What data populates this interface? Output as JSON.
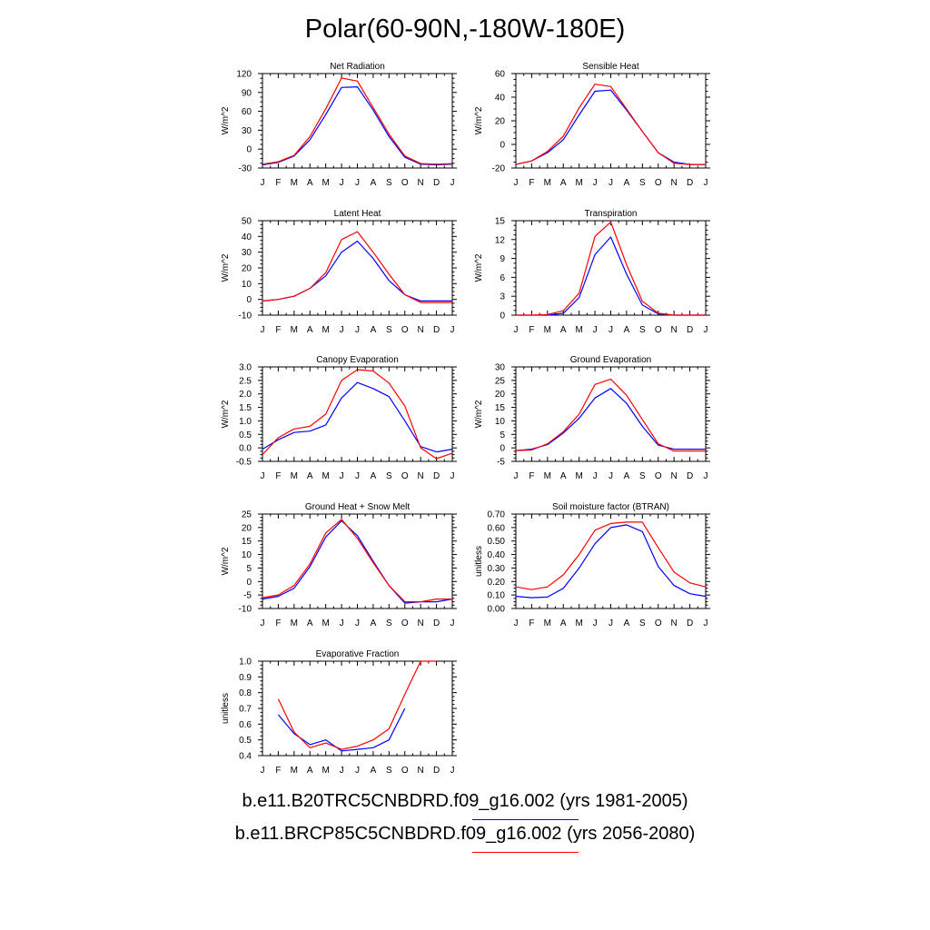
{
  "title": "Polar(60-90N,-180W-180E)",
  "colors": {
    "series_1": "#0000ff",
    "series_2": "#ff0000"
  },
  "legend": [
    {
      "label": "b.e11.B20TRC5CNBDRD.f09_g16.002 (yrs 1981-2005)",
      "color": "#0000ff"
    },
    {
      "label": "b.e11.BRCP85C5CNBDRD.f09_g16.002 (yrs 2056-2080)",
      "color": "#ff0000"
    }
  ],
  "chart_data": [
    {
      "type": "line",
      "title": "Net Radiation",
      "ylabel": "W/m^2",
      "categories": [
        "J",
        "F",
        "M",
        "A",
        "M",
        "J",
        "J",
        "A",
        "S",
        "O",
        "N",
        "D",
        "J"
      ],
      "ylim": [
        -30,
        120
      ],
      "yticks": [
        "-30",
        "0",
        "30",
        "60",
        "90",
        "120"
      ],
      "series": [
        {
          "name": "b.e11.B20TRC5CNBDRD.f09_g16.002 (yrs 1981-2005)",
          "values": [
            -25,
            -21,
            -11,
            15,
            55,
            98,
            99,
            62,
            20,
            -13,
            -24,
            -25,
            -24
          ]
        },
        {
          "name": "b.e11.BRCP85C5CNBDRD.f09_g16.002 (yrs 2056-2080)",
          "values": [
            -24,
            -20,
            -10,
            20,
            64,
            113,
            108,
            66,
            24,
            -11,
            -23,
            -24,
            -23
          ]
        }
      ]
    },
    {
      "type": "line",
      "title": "Sensible Heat",
      "ylabel": "W/m^2",
      "categories": [
        "J",
        "F",
        "M",
        "A",
        "M",
        "J",
        "J",
        "A",
        "S",
        "O",
        "N",
        "D",
        "J"
      ],
      "ylim": [
        -20,
        60
      ],
      "yticks": [
        "-20",
        "0",
        "20",
        "40",
        "60"
      ],
      "series": [
        {
          "name": "b.e11.B20TRC5CNBDRD.f09_g16.002 (yrs 1981-2005)",
          "values": [
            -17,
            -14,
            -7,
            4,
            25,
            45,
            46,
            29,
            11,
            -7,
            -15,
            -17,
            -17
          ]
        },
        {
          "name": "b.e11.BRCP85C5CNBDRD.f09_g16.002 (yrs 2056-2080)",
          "values": [
            -17,
            -14,
            -6,
            7,
            31,
            51,
            49,
            30,
            11,
            -7,
            -16,
            -17,
            -17
          ]
        }
      ]
    },
    {
      "type": "line",
      "title": "Latent Heat",
      "ylabel": "W/m^2",
      "categories": [
        "J",
        "F",
        "M",
        "A",
        "M",
        "J",
        "J",
        "A",
        "S",
        "O",
        "N",
        "D",
        "J"
      ],
      "ylim": [
        -10,
        50
      ],
      "yticks": [
        "-10",
        "0",
        "10",
        "20",
        "30",
        "40",
        "50"
      ],
      "series": [
        {
          "name": "b.e11.B20TRC5CNBDRD.f09_g16.002 (yrs 1981-2005)",
          "values": [
            -1,
            0,
            2,
            7,
            15,
            30,
            37,
            26,
            12,
            3,
            -1,
            -1,
            -1
          ]
        },
        {
          "name": "b.e11.BRCP85C5CNBDRD.f09_g16.002 (yrs 2056-2080)",
          "values": [
            -1,
            0,
            2,
            7,
            17,
            38,
            43,
            30,
            16,
            3,
            -2,
            -2,
            -2
          ]
        }
      ]
    },
    {
      "type": "line",
      "title": "Transpiration",
      "ylabel": "W/m^2",
      "categories": [
        "J",
        "F",
        "M",
        "A",
        "M",
        "J",
        "J",
        "A",
        "S",
        "O",
        "N",
        "D",
        "J"
      ],
      "ylim": [
        0,
        15
      ],
      "yticks": [
        "0",
        "3",
        "6",
        "9",
        "12",
        "15"
      ],
      "series": [
        {
          "name": "b.e11.B20TRC5CNBDRD.f09_g16.002 (yrs 1981-2005)",
          "values": [
            0,
            0,
            0,
            0.3,
            2.8,
            9.6,
            12.4,
            6.5,
            1.6,
            0.2,
            0,
            0,
            0
          ]
        },
        {
          "name": "b.e11.BRCP85C5CNBDRD.f09_g16.002 (yrs 2056-2080)",
          "values": [
            0,
            0,
            0.1,
            0.7,
            3.5,
            12.5,
            14.8,
            8,
            2.2,
            0.3,
            0,
            0,
            0
          ]
        }
      ]
    },
    {
      "type": "line",
      "title": "Canopy Evaporation",
      "ylabel": "W/m^2",
      "categories": [
        "J",
        "F",
        "M",
        "A",
        "M",
        "J",
        "J",
        "A",
        "S",
        "O",
        "N",
        "D",
        "J"
      ],
      "ylim": [
        -0.5,
        3.0
      ],
      "yticks": [
        "-0.5",
        "0.0",
        "0.5",
        "1.0",
        "1.5",
        "2.0",
        "2.5",
        "3.0"
      ],
      "series": [
        {
          "name": "b.e11.B20TRC5CNBDRD.f09_g16.002 (yrs 1981-2005)",
          "values": [
            -0.05,
            0.3,
            0.57,
            0.62,
            0.85,
            1.85,
            2.42,
            2.2,
            1.9,
            1.0,
            0.05,
            -0.15,
            -0.05
          ]
        },
        {
          "name": "b.e11.BRCP85C5CNBDRD.f09_g16.002 (yrs 2056-2080)",
          "values": [
            -0.25,
            0.38,
            0.7,
            0.8,
            1.25,
            2.5,
            2.9,
            2.85,
            2.4,
            1.55,
            0.0,
            -0.4,
            -0.2
          ]
        }
      ]
    },
    {
      "type": "line",
      "title": "Ground Evaporation",
      "ylabel": "W/m^2",
      "categories": [
        "J",
        "F",
        "M",
        "A",
        "M",
        "J",
        "J",
        "A",
        "S",
        "O",
        "N",
        "D",
        "J"
      ],
      "ylim": [
        -5,
        30
      ],
      "yticks": [
        "-5",
        "0",
        "5",
        "10",
        "15",
        "20",
        "25",
        "30"
      ],
      "series": [
        {
          "name": "b.e11.B20TRC5CNBDRD.f09_g16.002 (yrs 1981-2005)",
          "values": [
            -1,
            -0.5,
            1.2,
            5.5,
            11,
            18.5,
            22,
            16.5,
            8,
            1,
            -0.5,
            -0.5,
            -0.5
          ]
        },
        {
          "name": "b.e11.BRCP85C5CNBDRD.f09_g16.002 (yrs 2056-2080)",
          "values": [
            -1,
            -0.8,
            1.5,
            6,
            12.5,
            23.5,
            25.5,
            19.5,
            10.5,
            1.5,
            -1.2,
            -1.2,
            -1.2
          ]
        }
      ]
    },
    {
      "type": "line",
      "title": "Ground Heat + Snow Melt",
      "ylabel": "W/m^2",
      "categories": [
        "J",
        "F",
        "M",
        "A",
        "M",
        "J",
        "J",
        "A",
        "S",
        "O",
        "N",
        "D",
        "J"
      ],
      "ylim": [
        -10,
        25
      ],
      "yticks": [
        "-10",
        "-5",
        "0",
        "5",
        "10",
        "15",
        "20",
        "25"
      ],
      "series": [
        {
          "name": "b.e11.B20TRC5CNBDRD.f09_g16.002 (yrs 1981-2005)",
          "values": [
            -6.5,
            -5.5,
            -2.5,
            5.5,
            16.5,
            22.5,
            17,
            7.5,
            -1.5,
            -8,
            -7.5,
            -7.5,
            -6.5
          ]
        },
        {
          "name": "b.e11.BRCP85C5CNBDRD.f09_g16.002 (yrs 2056-2080)",
          "values": [
            -6,
            -5,
            -1.5,
            6.5,
            18,
            23,
            16,
            7,
            -1.5,
            -7.5,
            -7.5,
            -6.5,
            -6.5
          ]
        }
      ]
    },
    {
      "type": "line",
      "title": "Soil moisture factor (BTRAN)",
      "ylabel": "unitless",
      "categories": [
        "J",
        "F",
        "M",
        "A",
        "M",
        "J",
        "J",
        "A",
        "S",
        "O",
        "N",
        "D",
        "J"
      ],
      "ylim": [
        0.0,
        0.7
      ],
      "yticks": [
        "0.00",
        "0.10",
        "0.20",
        "0.30",
        "0.40",
        "0.50",
        "0.60",
        "0.70"
      ],
      "series": [
        {
          "name": "b.e11.B20TRC5CNBDRD.f09_g16.002 (yrs 1981-2005)",
          "values": [
            0.09,
            0.08,
            0.085,
            0.15,
            0.3,
            0.48,
            0.6,
            0.62,
            0.57,
            0.31,
            0.17,
            0.11,
            0.09
          ]
        },
        {
          "name": "b.e11.BRCP85C5CNBDRD.f09_g16.002 (yrs 2056-2080)",
          "values": [
            0.16,
            0.14,
            0.16,
            0.25,
            0.4,
            0.58,
            0.63,
            0.64,
            0.64,
            0.45,
            0.27,
            0.19,
            0.16
          ]
        }
      ]
    },
    {
      "type": "line",
      "title": "Evaporative Fraction",
      "ylabel": "unitless",
      "categories": [
        "J",
        "F",
        "M",
        "A",
        "M",
        "J",
        "J",
        "A",
        "S",
        "O",
        "N",
        "D",
        "J"
      ],
      "ylim": [
        0.4,
        1.0
      ],
      "yticks": [
        "0.4",
        "0.5",
        "0.6",
        "0.7",
        "0.8",
        "0.9",
        "1.0"
      ],
      "series": [
        {
          "name": "b.e11.B20TRC5CNBDRD.f09_g16.002 (yrs 1981-2005)",
          "values": [
            null,
            0.66,
            0.54,
            0.47,
            0.5,
            0.43,
            0.44,
            0.45,
            0.5,
            0.7,
            null,
            null,
            null
          ]
        },
        {
          "name": "b.e11.BRCP85C5CNBDRD.f09_g16.002 (yrs 2056-2080)",
          "values": [
            null,
            0.76,
            0.55,
            0.45,
            0.48,
            0.44,
            0.46,
            0.5,
            0.57,
            0.79,
            1.0,
            1.0,
            null
          ]
        }
      ]
    }
  ]
}
